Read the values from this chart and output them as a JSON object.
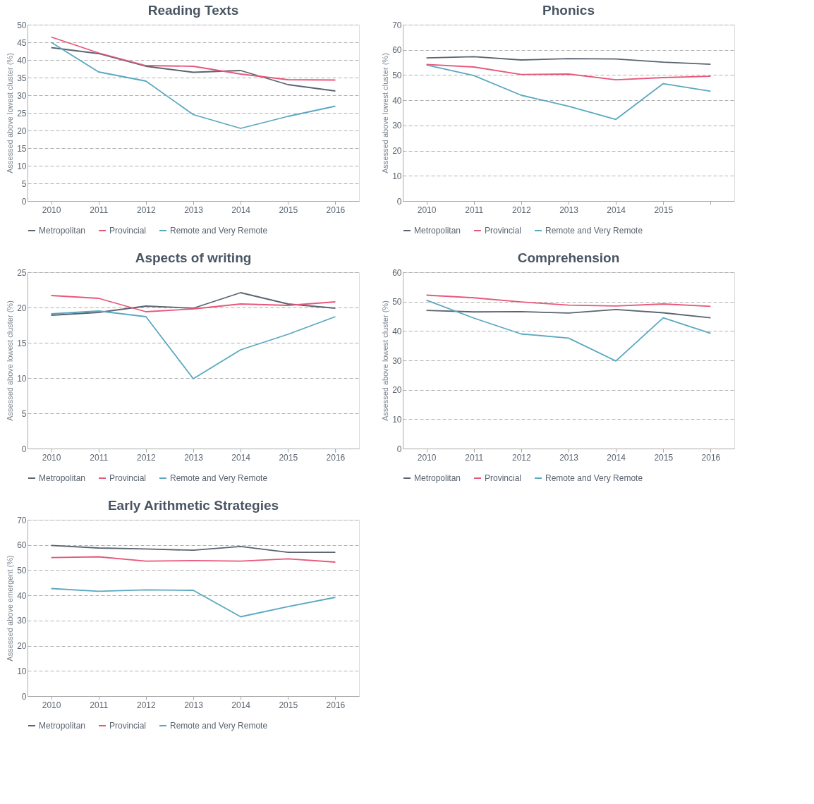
{
  "chart_data": [
    {
      "type": "line",
      "title": "Reading Texts",
      "ylabel": "Assessed above lowest cluster (%)",
      "categories": [
        "2010",
        "2011",
        "2012",
        "2013",
        "2014",
        "2015",
        "2016"
      ],
      "ylim": [
        0,
        50
      ],
      "yticks": [
        0,
        5,
        10,
        15,
        20,
        25,
        30,
        35,
        40,
        45,
        50
      ],
      "grid": "y",
      "legend": "bottom",
      "marker": "none",
      "line_style": "solid",
      "series": [
        {
          "name": "Metropolitan",
          "color": "#5a6470",
          "values": [
            43.5,
            41.8,
            38.2,
            36.5,
            37,
            33,
            31.2
          ]
        },
        {
          "name": "Provincial",
          "color": "#e8577a",
          "values": [
            46.5,
            42,
            38.4,
            38.2,
            36,
            34.4,
            34.3
          ]
        },
        {
          "name": "Remote and Very Remote",
          "color": "#5aa8c0",
          "values": [
            45,
            36.6,
            34,
            24.5,
            20.6,
            24,
            26.9
          ]
        }
      ]
    },
    {
      "type": "line",
      "title": "Phonics",
      "ylabel": "Assessed above lowest cluster (%)",
      "categories": [
        "2010",
        "2011",
        "2012",
        "2013",
        "2014",
        "2015",
        null
      ],
      "ylim": [
        0,
        70
      ],
      "yticks": [
        0,
        10,
        20,
        30,
        40,
        50,
        60,
        70
      ],
      "grid": "y",
      "legend": "bottom",
      "marker": "none",
      "line_style": "solid",
      "series": [
        {
          "name": "Metropolitan",
          "color": "#5a6470",
          "values": [
            56.8,
            57.3,
            56,
            56.5,
            56.4,
            55.1,
            54.3
          ]
        },
        {
          "name": "Provincial",
          "color": "#e8577a",
          "values": [
            54.2,
            53.2,
            50.2,
            50.4,
            48.1,
            49,
            49.5
          ]
        },
        {
          "name": "Remote and Very Remote",
          "color": "#5aa8c0",
          "values": [
            54,
            49.8,
            42,
            37.6,
            32.4,
            46.6,
            43.6
          ]
        }
      ]
    },
    {
      "type": "line",
      "title": "Aspects of writing",
      "ylabel": "Assessed above lowest cluster (%)",
      "categories": [
        "2010",
        "2011",
        "2012",
        "2013",
        "2014",
        "2015",
        "2016"
      ],
      "ylim": [
        0,
        25
      ],
      "yticks": [
        0,
        5,
        10,
        15,
        20,
        25
      ],
      "grid": "y",
      "legend": "bottom",
      "marker": "none",
      "line_style": "solid",
      "series": [
        {
          "name": "Metropolitan",
          "color": "#5a6470",
          "values": [
            18.9,
            19.3,
            20.2,
            19.9,
            22.1,
            20.5,
            19.9
          ]
        },
        {
          "name": "Provincial",
          "color": "#e8577a",
          "values": [
            21.7,
            21.3,
            19.4,
            19.8,
            20.5,
            20.3,
            20.8
          ]
        },
        {
          "name": "Remote and Very Remote",
          "color": "#5aa8c0",
          "values": [
            19.1,
            19.5,
            18.7,
            9.9,
            14,
            16.2,
            18.7
          ]
        }
      ]
    },
    {
      "type": "line",
      "title": "Comprehension",
      "ylabel": "Assessed above lowest cluster (%)",
      "categories": [
        "2010",
        "2011",
        "2012",
        "2013",
        "2014",
        "2015",
        "2016"
      ],
      "ylim": [
        0,
        60
      ],
      "yticks": [
        0,
        10,
        20,
        30,
        40,
        50,
        60
      ],
      "grid": "y",
      "legend": "bottom",
      "marker": "none",
      "line_style": "solid",
      "series": [
        {
          "name": "Metropolitan",
          "color": "#5a6470",
          "values": [
            47,
            46.5,
            46.6,
            46.1,
            47.3,
            46.2,
            44.5
          ]
        },
        {
          "name": "Provincial",
          "color": "#e8577a",
          "values": [
            52.2,
            51.3,
            49.9,
            48.8,
            48.5,
            49.2,
            48.4
          ]
        },
        {
          "name": "Remote and Very Remote",
          "color": "#5aa8c0",
          "values": [
            50.5,
            44.4,
            39,
            37.6,
            29.8,
            44.5,
            39.2
          ]
        }
      ]
    },
    {
      "type": "line",
      "title": "Early Arithmetic Strategies",
      "ylabel": "Assessed above emergent (%)",
      "categories": [
        "2010",
        "2011",
        "2012",
        "2013",
        "2014",
        "2015",
        "2016"
      ],
      "ylim": [
        0,
        70
      ],
      "yticks": [
        0,
        10,
        20,
        30,
        40,
        50,
        60,
        70
      ],
      "grid": "y",
      "legend": "bottom",
      "marker": "none",
      "line_style": "solid",
      "series": [
        {
          "name": "Metropolitan",
          "color": "#5a6470",
          "values": [
            59.8,
            58.8,
            58.4,
            57.9,
            59.4,
            57.1,
            57.1
          ]
        },
        {
          "name": "Provincial",
          "color": "#e8577a",
          "values": [
            55,
            55.3,
            53.6,
            53.8,
            53.6,
            54.5,
            53.2
          ]
        },
        {
          "name": "Remote and Very Remote",
          "color": "#5aa8c0",
          "values": [
            42.7,
            41.6,
            42.2,
            42,
            31.5,
            35.5,
            39.2
          ]
        }
      ]
    }
  ]
}
